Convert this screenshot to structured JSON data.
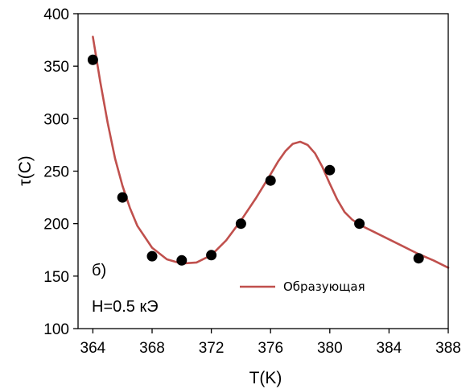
{
  "chart_data": {
    "type": "scatter",
    "xlabel": "T(K)",
    "ylabel": "τ(C)",
    "xlim": [
      363,
      388
    ],
    "ylim": [
      100,
      400
    ],
    "xticks": [
      364,
      368,
      372,
      376,
      380,
      384,
      388
    ],
    "yticks": [
      100,
      150,
      200,
      250,
      300,
      350,
      400
    ],
    "grid": false,
    "legend_position": "bottom-right",
    "colors": {
      "points": "#000000",
      "curve": "#c0504d"
    },
    "annotations": [
      "б)",
      "H=0.5 кЭ"
    ],
    "series": [
      {
        "kind": "points",
        "x": [
          364,
          366,
          368,
          370,
          372,
          374,
          376,
          380,
          382,
          386
        ],
        "y": [
          356,
          225,
          169,
          165,
          170,
          200,
          241,
          251,
          200,
          167
        ]
      },
      {
        "kind": "line",
        "name": "Образующая",
        "x": [
          364,
          364.5,
          365,
          365.5,
          366,
          366.5,
          367,
          368,
          369,
          370,
          371,
          372,
          373,
          374,
          375,
          376,
          376.5,
          377,
          377.5,
          378,
          378.5,
          379,
          379.5,
          380,
          380.5,
          381,
          381.5,
          382,
          383,
          384,
          385,
          386,
          387,
          388
        ],
        "y": [
          378,
          335,
          296,
          262,
          236,
          215,
          198,
          177,
          166,
          162,
          163,
          170,
          184,
          203,
          224,
          247,
          259,
          269,
          276,
          278,
          275,
          267,
          254,
          238,
          223,
          211,
          204,
          199,
          192,
          185,
          178,
          171,
          165,
          158
        ]
      }
    ]
  }
}
